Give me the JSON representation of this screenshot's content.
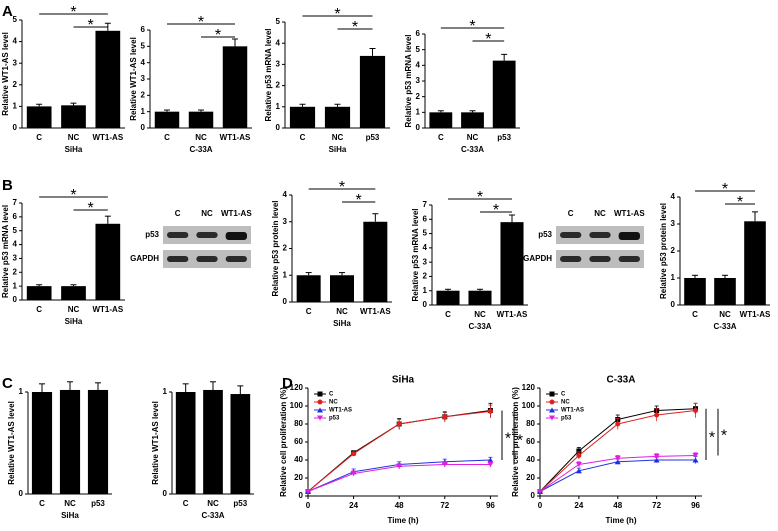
{
  "panel_labels": [
    "A",
    "B",
    "C",
    "D"
  ],
  "blots": [
    {
      "lanes": [
        "C",
        "NC",
        "WT1-AS"
      ],
      "rows": [
        "p53",
        "GAPDH"
      ]
    },
    {
      "lanes": [
        "C",
        "NC",
        "WT1-AS"
      ],
      "rows": [
        "p53",
        "GAPDH"
      ]
    }
  ],
  "chart_data": [
    {
      "type": "bar",
      "y_label": "Relative WT1-AS level",
      "x_label": "SiHa",
      "categories": [
        "C",
        "NC",
        "WT1-AS"
      ],
      "values": [
        1,
        1.05,
        4.5
      ],
      "errors": [
        0.1,
        0.1,
        0.35
      ],
      "color": "#000000",
      "ylim": [
        0,
        5
      ],
      "yticks": [
        0,
        1,
        2,
        3,
        4,
        5
      ],
      "annotations": [
        "*",
        "*"
      ]
    },
    {
      "type": "bar",
      "y_label": "Relative WT1-AS level",
      "x_label": "C-33A",
      "categories": [
        "C",
        "NC",
        "WT1-AS"
      ],
      "values": [
        1,
        1,
        5
      ],
      "errors": [
        0.1,
        0.1,
        0.45
      ],
      "color": "#000000",
      "ylim": [
        0,
        6
      ],
      "yticks": [
        0,
        1,
        2,
        3,
        4,
        5,
        6
      ],
      "annotations": [
        "*",
        "*"
      ]
    },
    {
      "type": "bar",
      "y_label": "Relative p53 mRNA level",
      "x_label": "SiHa",
      "categories": [
        "C",
        "NC",
        "p53"
      ],
      "values": [
        1,
        1,
        3.4
      ],
      "errors": [
        0.12,
        0.12,
        0.35
      ],
      "color": "#000000",
      "ylim": [
        0,
        5
      ],
      "yticks": [
        0,
        1,
        2,
        3,
        4,
        5
      ],
      "annotations": [
        "*",
        "*"
      ]
    },
    {
      "type": "bar",
      "y_label": "Relative p53 mRNA level",
      "x_label": "C-33A",
      "categories": [
        "C",
        "NC",
        "p53"
      ],
      "values": [
        1,
        1,
        4.3
      ],
      "errors": [
        0.1,
        0.1,
        0.4
      ],
      "color": "#000000",
      "ylim": [
        0,
        6
      ],
      "yticks": [
        0,
        1,
        2,
        3,
        4,
        5,
        6
      ],
      "annotations": [
        "*",
        "*"
      ]
    },
    {
      "type": "bar",
      "y_label": "Relative p53 mRNA level",
      "x_label": "SiHa",
      "categories": [
        "C",
        "NC",
        "WT1-AS"
      ],
      "values": [
        1,
        1,
        5.5
      ],
      "errors": [
        0.1,
        0.1,
        0.55
      ],
      "color": "#000000",
      "ylim": [
        0,
        7
      ],
      "yticks": [
        0,
        1,
        2,
        3,
        4,
        5,
        6,
        7
      ],
      "annotations": [
        "*",
        "*"
      ]
    },
    {
      "type": "bar",
      "y_label": "Relative p53 protein level",
      "x_label": "SiHa",
      "categories": [
        "C",
        "NC",
        "WT1-AS"
      ],
      "values": [
        1,
        1,
        3
      ],
      "errors": [
        0.1,
        0.1,
        0.3
      ],
      "color": "#000000",
      "ylim": [
        0,
        4
      ],
      "yticks": [
        0,
        1,
        2,
        3,
        4
      ],
      "annotations": [
        "*",
        "*"
      ]
    },
    {
      "type": "bar",
      "y_label": "Relative p53 mRNA level",
      "x_label": "C-33A",
      "categories": [
        "C",
        "NC",
        "WT1-AS"
      ],
      "values": [
        1,
        1,
        5.8
      ],
      "errors": [
        0.1,
        0.1,
        0.5
      ],
      "color": "#000000",
      "ylim": [
        0,
        7
      ],
      "yticks": [
        0,
        1,
        2,
        3,
        4,
        5,
        6,
        7
      ],
      "annotations": [
        "*",
        "*"
      ]
    },
    {
      "type": "bar",
      "y_label": "Relative p53 protein level",
      "x_label": "C-33A",
      "categories": [
        "C",
        "NC",
        "WT1-AS"
      ],
      "values": [
        1,
        1,
        3.1
      ],
      "errors": [
        0.1,
        0.1,
        0.35
      ],
      "color": "#000000",
      "ylim": [
        0,
        4
      ],
      "yticks": [
        0,
        1,
        2,
        3,
        4
      ],
      "annotations": [
        "*",
        "*"
      ]
    },
    {
      "type": "bar",
      "y_label": "Relative WT1-AS level",
      "x_label": "SiHa",
      "categories": [
        "C",
        "NC",
        "p53"
      ],
      "values": [
        1,
        1.02,
        1.02
      ],
      "errors": [
        0.08,
        0.08,
        0.07
      ],
      "color": "#000000",
      "ylim": [
        0,
        1
      ],
      "yticks": [
        0,
        1
      ],
      "annotations": []
    },
    {
      "type": "bar",
      "y_label": "Relative WT1-AS level",
      "x_label": "C-33A",
      "categories": [
        "C",
        "NC",
        "p53"
      ],
      "values": [
        1,
        1.02,
        0.98
      ],
      "errors": [
        0.08,
        0.08,
        0.08
      ],
      "color": "#000000",
      "ylim": [
        0,
        1
      ],
      "yticks": [
        0,
        1
      ],
      "annotations": []
    },
    {
      "type": "line",
      "title": "SiHa",
      "y_label": "Relative cell proliferation (%)",
      "x_label": "Time (h)",
      "x": [
        0,
        24,
        48,
        72,
        96
      ],
      "xlim": [
        0,
        100
      ],
      "xticks": [
        0,
        24,
        48,
        72,
        96
      ],
      "ylim": [
        0,
        120
      ],
      "yticks": [
        0,
        20,
        40,
        60,
        80,
        100,
        120
      ],
      "series": [
        {
          "name": "C",
          "color": "#000000",
          "marker": "square",
          "values": [
            5,
            48,
            80,
            88,
            95
          ],
          "errors": [
            1,
            2,
            6,
            5,
            8
          ]
        },
        {
          "name": "NC",
          "color": "#e02020",
          "marker": "circle",
          "values": [
            5,
            47,
            80,
            88,
            94
          ],
          "errors": [
            1,
            2,
            5,
            6,
            7
          ]
        },
        {
          "name": "WT1-AS",
          "color": "#2030e0",
          "marker": "triangle",
          "values": [
            5,
            27,
            35,
            38,
            40
          ],
          "errors": [
            1,
            3,
            3,
            3,
            3
          ]
        },
        {
          "name": "p53",
          "color": "#e020e0",
          "marker": "triangle-down",
          "values": [
            5,
            25,
            33,
            35,
            35
          ],
          "errors": [
            1,
            3,
            3,
            3,
            3
          ]
        }
      ],
      "annotations": [
        "*",
        "*"
      ]
    },
    {
      "type": "line",
      "title": "C-33A",
      "y_label": "Relative cell proliferation (%)",
      "x_label": "Time (h)",
      "x": [
        0,
        24,
        48,
        72,
        96
      ],
      "xlim": [
        0,
        100
      ],
      "xticks": [
        0,
        24,
        48,
        72,
        96
      ],
      "ylim": [
        0,
        120
      ],
      "yticks": [
        0,
        20,
        40,
        60,
        80,
        100,
        120
      ],
      "series": [
        {
          "name": "C",
          "color": "#000000",
          "marker": "square",
          "values": [
            5,
            50,
            85,
            95,
            97
          ],
          "errors": [
            1,
            4,
            5,
            5,
            6
          ]
        },
        {
          "name": "NC",
          "color": "#e02020",
          "marker": "circle",
          "values": [
            5,
            45,
            80,
            90,
            95
          ],
          "errors": [
            1,
            4,
            6,
            7,
            8
          ]
        },
        {
          "name": "WT1-AS",
          "color": "#2030e0",
          "marker": "triangle",
          "values": [
            5,
            28,
            38,
            40,
            40
          ],
          "errors": [
            1,
            3,
            3,
            3,
            4
          ]
        },
        {
          "name": "p53",
          "color": "#e020e0",
          "marker": "triangle-down",
          "values": [
            5,
            35,
            42,
            44,
            45
          ],
          "errors": [
            1,
            3,
            3,
            3,
            3
          ]
        }
      ],
      "annotations": [
        "*",
        "*"
      ]
    }
  ]
}
